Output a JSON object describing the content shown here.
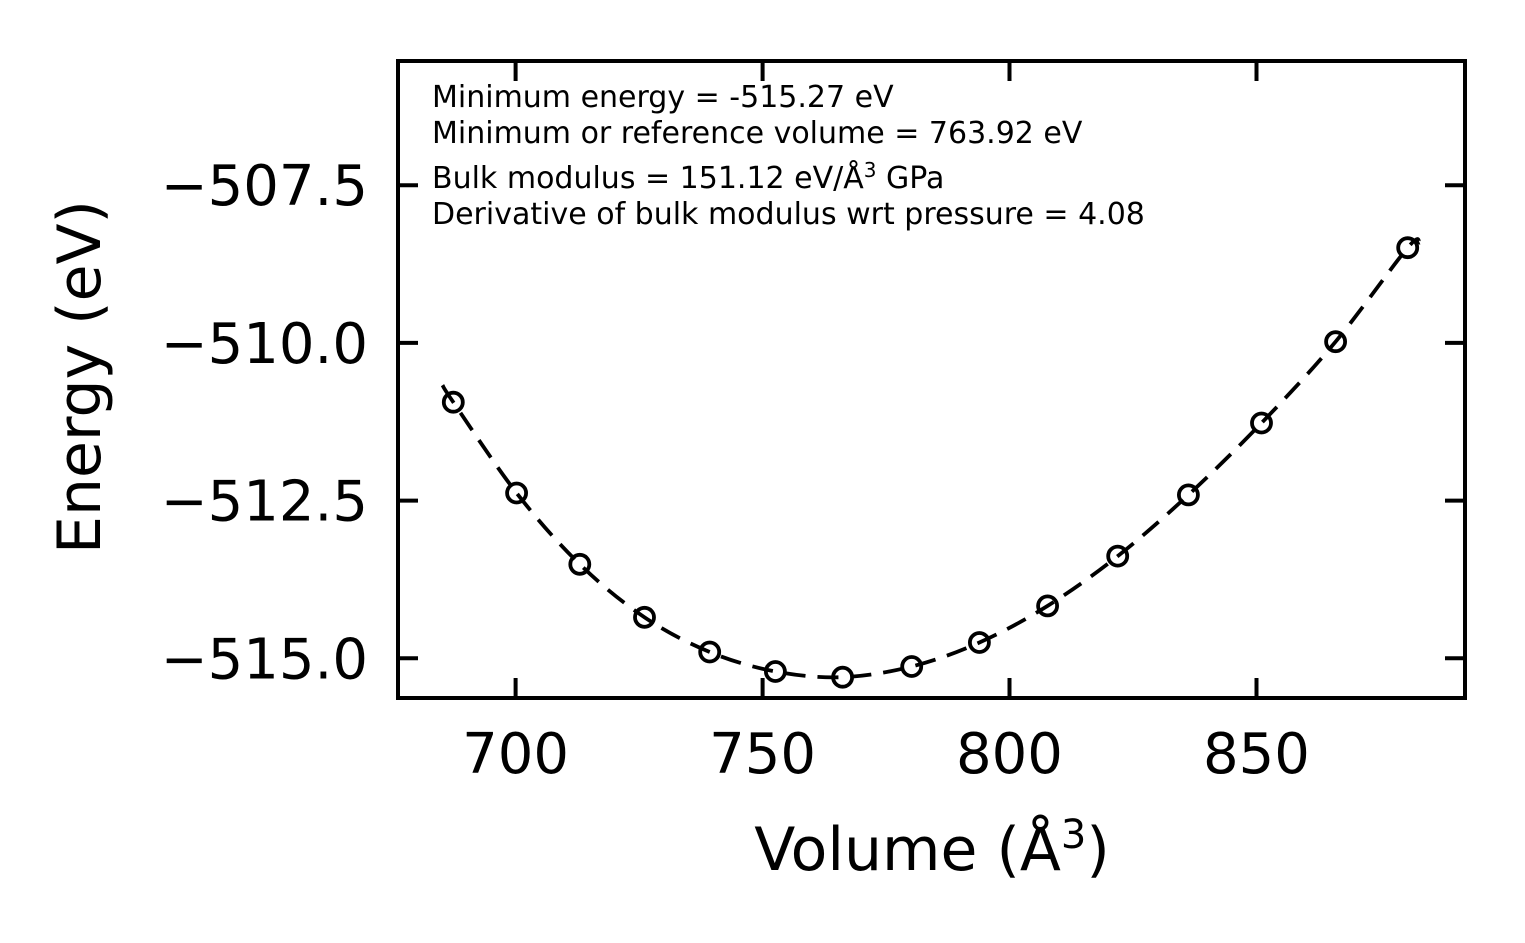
{
  "chart_data": {
    "type": "scatter",
    "title": "",
    "xlabel": "Volume (Å³)",
    "ylabel": "Energy (eV)",
    "x_ticks": [
      700,
      750,
      800,
      850
    ],
    "y_ticks": [
      -507.5,
      -510.0,
      -512.5,
      -515.0
    ],
    "xlim": [
      676.2,
      892.2
    ],
    "ylim": [
      -515.63,
      -505.53
    ],
    "grid": false,
    "legend_position": "none",
    "ticks_direction": "in",
    "ticks_mirrored_all_sides": true,
    "series": [
      {
        "name": "energy-volume data points",
        "marker": "open-circle",
        "line": "none",
        "x": [
          687.4,
          700.2,
          713.0,
          726.1,
          739.3,
          752.6,
          766.2,
          780.2,
          793.9,
          807.7,
          821.9,
          836.2,
          851.0,
          866.0,
          880.6
        ],
        "y": [
          -510.94,
          -512.38,
          -513.51,
          -514.35,
          -514.9,
          -515.21,
          -515.3,
          -515.13,
          -514.75,
          -514.17,
          -513.38,
          -512.41,
          -511.27,
          -509.98,
          -508.49
        ]
      },
      {
        "name": "equation-of-state fit curve",
        "marker": "none",
        "line": "dashed",
        "start": [
          685.2,
          -510.67
        ],
        "end": [
          883.0,
          -508.41
        ]
      }
    ],
    "fit_parameters": {
      "minimum_energy_eV": -515.27,
      "reference_volume": 763.92,
      "bulk_modulus": 151.12,
      "bulk_modulus_derivative_wrt_pressure": 4.08
    },
    "annotation_lines": [
      "Minimum energy = -515.27 eV",
      "Minimum or reference volume = 763.92 eV",
      "Bulk modulus = 151.12 eV/Å³ GPa",
      "Derivative of bulk modulus wrt pressure = 4.08"
    ],
    "colors": {
      "ink": "#000000",
      "background": "#ffffff"
    }
  }
}
